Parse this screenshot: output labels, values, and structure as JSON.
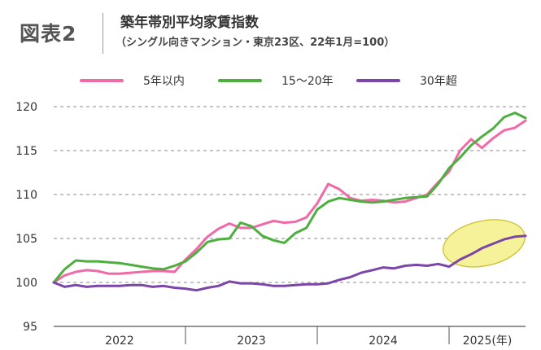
{
  "header": {
    "figure_label": "図表2",
    "title": "築年帯別平均家賃指数",
    "subtitle": "（シングル向きマンション・東京23区、22年1月=100）"
  },
  "colors": {
    "pink": "#f06aa8",
    "green": "#4caf3e",
    "purple": "#7b46a8",
    "highlight_fill": "#f6f29a",
    "highlight_stroke": "#c9be2a"
  },
  "chart_data": {
    "type": "line",
    "ylim": [
      95,
      120
    ],
    "yticks": [
      95,
      100,
      105,
      110,
      115,
      120
    ],
    "xlim": [
      2022.0,
      2025.58
    ],
    "xticks": [
      2022,
      2023,
      2024,
      2025
    ],
    "xtick_labels": [
      "2022",
      "2023",
      "2024",
      "2025(年)"
    ],
    "grid": "dashed horizontal",
    "legend": "top",
    "highlight_ellipse": {
      "x_range": [
        2024.95,
        2025.58
      ],
      "y_range": [
        101.9,
        107.0
      ]
    },
    "series": [
      {
        "name": "5年以内",
        "color_key": "pink",
        "x": [
          2022.0,
          2022.083,
          2022.167,
          2022.25,
          2022.333,
          2022.417,
          2022.5,
          2022.583,
          2022.667,
          2022.75,
          2022.833,
          2022.917,
          2023.0,
          2023.083,
          2023.167,
          2023.25,
          2023.333,
          2023.417,
          2023.5,
          2023.583,
          2023.667,
          2023.75,
          2023.833,
          2023.917,
          2024.0,
          2024.083,
          2024.167,
          2024.25,
          2024.333,
          2024.417,
          2024.5,
          2024.583,
          2024.667,
          2024.75,
          2024.833,
          2024.917,
          2025.0,
          2025.083,
          2025.167,
          2025.25,
          2025.333,
          2025.417,
          2025.5,
          2025.58
        ],
        "values": [
          100.0,
          100.8,
          101.2,
          101.4,
          101.3,
          101.0,
          101.0,
          101.1,
          101.2,
          101.3,
          101.3,
          101.2,
          102.6,
          103.8,
          105.2,
          106.1,
          106.7,
          106.2,
          106.2,
          106.6,
          107.0,
          106.8,
          106.9,
          107.4,
          109.0,
          111.2,
          110.6,
          109.6,
          109.3,
          109.4,
          109.3,
          109.1,
          109.2,
          109.6,
          110.0,
          111.4,
          112.6,
          115.0,
          116.3,
          115.3,
          116.4,
          117.3,
          117.6,
          118.4
        ]
      },
      {
        "name": "15～20年",
        "color_key": "green",
        "x": [
          2022.0,
          2022.083,
          2022.167,
          2022.25,
          2022.333,
          2022.417,
          2022.5,
          2022.583,
          2022.667,
          2022.75,
          2022.833,
          2022.917,
          2023.0,
          2023.083,
          2023.167,
          2023.25,
          2023.333,
          2023.417,
          2023.5,
          2023.583,
          2023.667,
          2023.75,
          2023.833,
          2023.917,
          2024.0,
          2024.083,
          2024.167,
          2024.25,
          2024.333,
          2024.417,
          2024.5,
          2024.583,
          2024.667,
          2024.75,
          2024.833,
          2024.917,
          2025.0,
          2025.083,
          2025.167,
          2025.25,
          2025.333,
          2025.417,
          2025.5,
          2025.58
        ],
        "values": [
          100.0,
          101.5,
          102.5,
          102.4,
          102.4,
          102.3,
          102.2,
          102.0,
          101.8,
          101.6,
          101.5,
          101.9,
          102.4,
          103.4,
          104.6,
          104.9,
          105.0,
          106.8,
          106.4,
          105.3,
          104.8,
          104.5,
          105.6,
          106.2,
          108.3,
          109.2,
          109.6,
          109.4,
          109.2,
          109.1,
          109.2,
          109.4,
          109.6,
          109.7,
          109.8,
          111.2,
          113.0,
          114.2,
          115.6,
          116.6,
          117.5,
          118.8,
          119.3,
          118.7
        ]
      },
      {
        "name": "30年超",
        "color_key": "purple",
        "x": [
          2022.0,
          2022.083,
          2022.167,
          2022.25,
          2022.333,
          2022.417,
          2022.5,
          2022.583,
          2022.667,
          2022.75,
          2022.833,
          2022.917,
          2023.0,
          2023.083,
          2023.167,
          2023.25,
          2023.333,
          2023.417,
          2023.5,
          2023.583,
          2023.667,
          2023.75,
          2023.833,
          2023.917,
          2024.0,
          2024.083,
          2024.167,
          2024.25,
          2024.333,
          2024.417,
          2024.5,
          2024.583,
          2024.667,
          2024.75,
          2024.833,
          2024.917,
          2025.0,
          2025.083,
          2025.167,
          2025.25,
          2025.333,
          2025.417,
          2025.5,
          2025.58
        ],
        "values": [
          100.0,
          99.5,
          99.7,
          99.5,
          99.6,
          99.6,
          99.6,
          99.7,
          99.7,
          99.5,
          99.6,
          99.4,
          99.3,
          99.1,
          99.4,
          99.6,
          100.1,
          99.9,
          99.9,
          99.8,
          99.6,
          99.6,
          99.7,
          99.8,
          99.8,
          99.9,
          100.3,
          100.6,
          101.1,
          101.4,
          101.7,
          101.6,
          101.9,
          102.0,
          101.9,
          102.1,
          101.8,
          102.6,
          103.2,
          103.9,
          104.4,
          104.9,
          105.2,
          105.3
        ]
      }
    ]
  }
}
